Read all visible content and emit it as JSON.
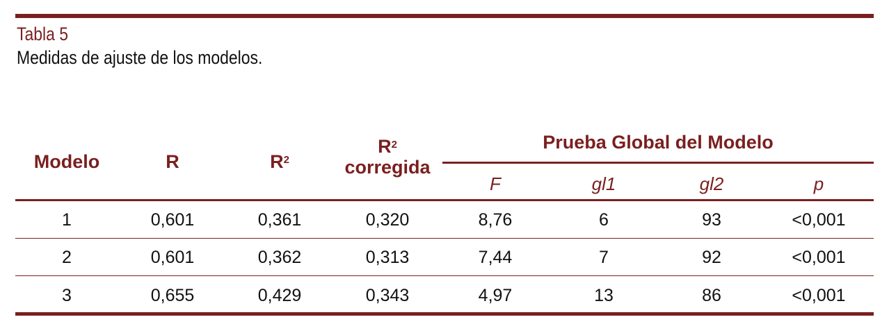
{
  "caption": {
    "label": "Tabla 5",
    "title": "Medidas de ajuste de los modelos."
  },
  "accent_color": "#7a1f1f",
  "header": {
    "modelo": "Modelo",
    "r": "R",
    "r2_base": "R",
    "r2_sup": "2",
    "r2c_base": "R",
    "r2c_sup": "2",
    "r2c_word": "corregida",
    "group": "Prueba Global del Modelo",
    "sub": [
      "F",
      "gl1",
      "gl2",
      "p"
    ]
  },
  "rows": [
    [
      "1",
      "0,601",
      "0,361",
      "0,320",
      "8,76",
      "6",
      "93",
      "<0,001"
    ],
    [
      "2",
      "0,601",
      "0,362",
      "0,313",
      "7,44",
      "7",
      "92",
      "<0,001"
    ],
    [
      "3",
      "0,655",
      "0,429",
      "0,343",
      "4,97",
      "13",
      "86",
      "<0,001"
    ]
  ]
}
